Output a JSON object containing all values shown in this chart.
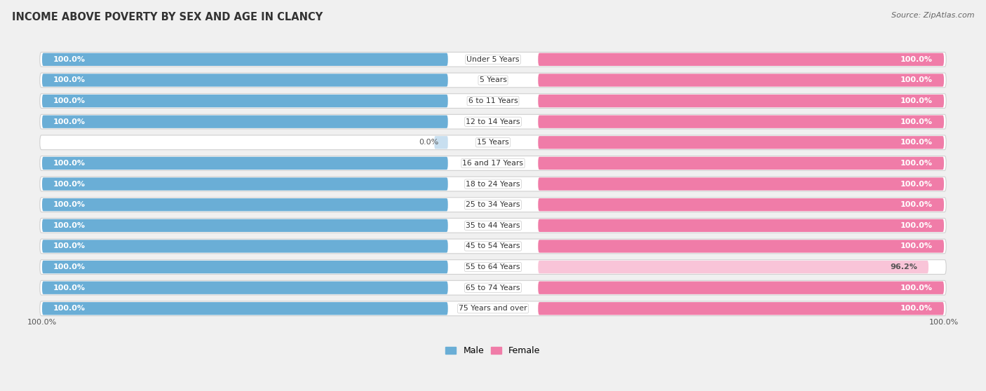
{
  "title": "INCOME ABOVE POVERTY BY SEX AND AGE IN CLANCY",
  "source": "Source: ZipAtlas.com",
  "categories": [
    "Under 5 Years",
    "5 Years",
    "6 to 11 Years",
    "12 to 14 Years",
    "15 Years",
    "16 and 17 Years",
    "18 to 24 Years",
    "25 to 34 Years",
    "35 to 44 Years",
    "45 to 54 Years",
    "55 to 64 Years",
    "65 to 74 Years",
    "75 Years and over"
  ],
  "male_values": [
    100.0,
    100.0,
    100.0,
    100.0,
    0.0,
    100.0,
    100.0,
    100.0,
    100.0,
    100.0,
    100.0,
    100.0,
    100.0
  ],
  "female_values": [
    100.0,
    100.0,
    100.0,
    100.0,
    100.0,
    100.0,
    100.0,
    100.0,
    100.0,
    100.0,
    96.2,
    100.0,
    100.0
  ],
  "male_color": "#6aaed6",
  "female_color": "#f07ca8",
  "male_light_color": "#c8dff0",
  "female_light_color": "#f9c4d8",
  "track_color": "#e8e8e8",
  "track_border_color": "#d0d0d0",
  "background_color": "#f0f0f0",
  "bar_height": 0.62,
  "male_label": "Male",
  "female_label": "Female",
  "value_fontsize": 8.0,
  "category_fontsize": 7.8,
  "label_color_white": "#ffffff",
  "label_color_dark": "#555555"
}
